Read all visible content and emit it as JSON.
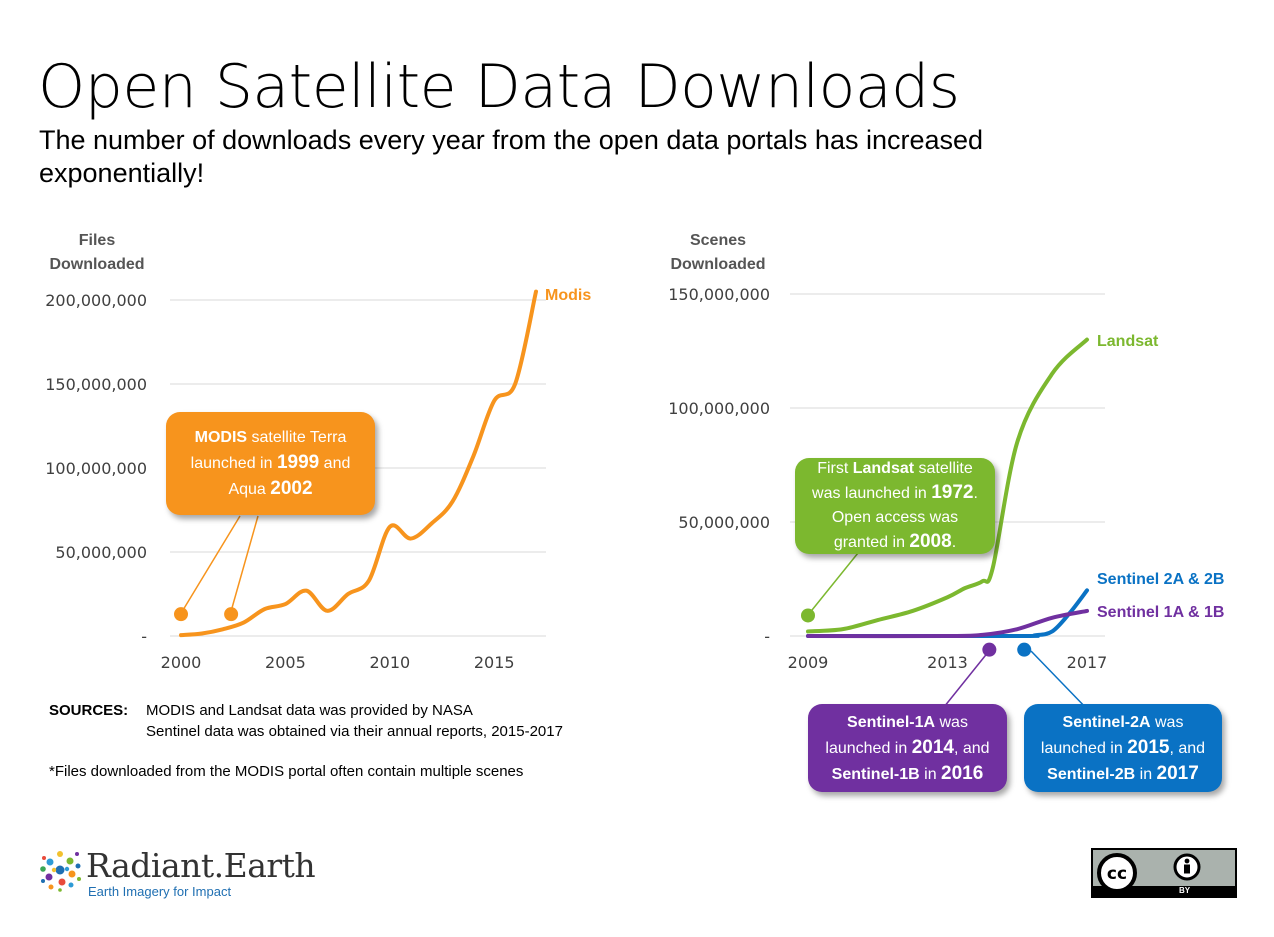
{
  "title": "Open Satellite Data Downloads",
  "subtitle": "The number of downloads every year from the open data portals has increased exponentially!",
  "chart_data": [
    {
      "type": "line",
      "ylabel": "Files Downloaded",
      "ylabel_lines": [
        "Files",
        "Downloaded"
      ],
      "xlim": [
        1999,
        2018
      ],
      "ylim": [
        0,
        200000000
      ],
      "yticks": [
        0,
        50000000,
        100000000,
        150000000,
        200000000
      ],
      "ytick_labels": [
        "-",
        "50,000,000",
        "100,000,000",
        "150,000,000",
        "200,000,000"
      ],
      "xticks": [
        2000,
        2005,
        2010,
        2015
      ],
      "xtick_labels": [
        "2000",
        "2005",
        "2010",
        "2015"
      ],
      "grid": true,
      "color": "#f7941d",
      "series": [
        {
          "name": "Modis",
          "x": [
            2000,
            2001,
            2002,
            2003,
            2004,
            2005,
            2006,
            2007,
            2008,
            2009,
            2010,
            2011,
            2012,
            2013,
            2014,
            2015,
            2016,
            2017
          ],
          "values": [
            500000,
            1500000,
            4000000,
            8000000,
            16000000,
            19000000,
            27000000,
            15000000,
            25000000,
            33000000,
            65000000,
            58000000,
            67000000,
            80000000,
            107000000,
            140000000,
            150000000,
            205000000
          ]
        }
      ],
      "markers": [
        {
          "x": 2000,
          "y": 13000000
        },
        {
          "x": 2002.4,
          "y": 13000000
        }
      ]
    },
    {
      "type": "line",
      "ylabel": "Scenes Downloaded",
      "ylabel_lines": [
        "Scenes",
        "Downloaded"
      ],
      "xlim": [
        2009,
        2017
      ],
      "ylim": [
        0,
        150000000
      ],
      "yticks": [
        0,
        50000000,
        100000000,
        150000000
      ],
      "ytick_labels": [
        "-",
        "50,000,000",
        "100,000,000",
        "150,000,000"
      ],
      "xticks": [
        2009,
        2013,
        2017
      ],
      "xtick_labels": [
        "2009",
        "2013",
        "2017"
      ],
      "grid": true,
      "series": [
        {
          "name": "Landsat",
          "color": "#7cb82f",
          "x": [
            2009,
            2010,
            2011,
            2012,
            2013,
            2013.5,
            2014,
            2014.3,
            2015,
            2016,
            2017
          ],
          "values": [
            2000000,
            3000000,
            7000000,
            11000000,
            17000000,
            21000000,
            24000000,
            30000000,
            85000000,
            115000000,
            130000000
          ]
        },
        {
          "name": "Sentinel 2A & 2B",
          "color": "#0a72c4",
          "x": [
            2009,
            2015,
            2015.5,
            2016,
            2016.5,
            2017
          ],
          "values": [
            0,
            0,
            300000,
            2000000,
            10000000,
            20000000
          ]
        },
        {
          "name": "Sentinel 1A & 1B",
          "color": "#7030a0",
          "x": [
            2009,
            2013,
            2014,
            2015,
            2016,
            2017
          ],
          "values": [
            0,
            0,
            500000,
            3000000,
            8000000,
            11000000
          ]
        }
      ],
      "markers": [
        {
          "x": 2009,
          "y": 9000000,
          "color": "#7cb82f"
        },
        {
          "x": 2014.2,
          "y": -6000000,
          "color": "#7030a0"
        },
        {
          "x": 2015.2,
          "y": -6000000,
          "color": "#0a72c4"
        }
      ]
    }
  ],
  "callouts": {
    "modis": {
      "bold1": "MODIS",
      "t1": " satellite Terra",
      "t2": "launched in ",
      "big1": "1999",
      "t3": " and",
      "t4": "Aqua ",
      "big2": "2002",
      "color": "#f7941d"
    },
    "landsat": {
      "t1": "First ",
      "bold1": "Landsat",
      "t2": " satellite",
      "t3": "was launched in ",
      "big1": "1972",
      "t4": ".",
      "t5": "Open access was",
      "t6": "granted in ",
      "big2": "2008",
      "t7": ".",
      "color": "#7cb82f"
    },
    "sentinel1": {
      "bold1": "Sentinel-1A",
      "t1": " was",
      "t2": "launched in ",
      "big1": "2014",
      "t3": ", and",
      "bold2": "Sentinel-1B",
      "t4": " in ",
      "big2": "2016",
      "color": "#7030a0"
    },
    "sentinel2": {
      "bold1": "Sentinel-2A",
      "t1": " was",
      "t2": "launched in ",
      "big1": "2015",
      "t3": ", and",
      "bold2": "Sentinel-2B",
      "t4": " in ",
      "big2": "2017",
      "color": "#0a72c4"
    }
  },
  "sources": {
    "label": "SOURCES:",
    "line1": "MODIS and Landsat data was provided by NASA",
    "line2": "Sentinel data was obtained via their annual reports, 2015-2017"
  },
  "footnote": "*Files downloaded from the MODIS portal often contain multiple scenes",
  "logo": {
    "name": "Radiant.Earth",
    "tagline": "Earth Imagery for Impact",
    "icon": "radiant-earth-dots-logo"
  },
  "license": {
    "icon": "cc-by-badge",
    "by_text": "BY"
  }
}
